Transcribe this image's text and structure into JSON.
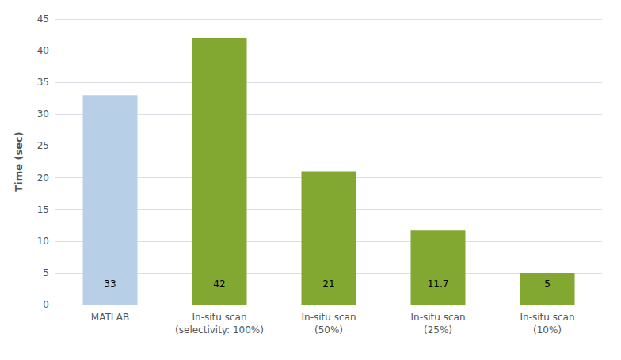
{
  "chart_data": {
    "type": "bar",
    "categories": [
      "MATLAB",
      "In-situ scan\n(selectivity: 100%)",
      "In-situ scan\n(50%)",
      "In-situ scan\n(25%)",
      "In-situ scan\n(10%)"
    ],
    "values": [
      33,
      42,
      21,
      11.7,
      5
    ],
    "colors": [
      "#b8cfe8",
      "#82a832",
      "#82a832",
      "#82a832",
      "#82a832"
    ],
    "ylabel": "Time (sec)",
    "ylim": [
      0,
      45
    ],
    "yticks": [
      0,
      5,
      10,
      15,
      20,
      25,
      30,
      35,
      40,
      45
    ],
    "grid": true,
    "data_labels": true
  }
}
